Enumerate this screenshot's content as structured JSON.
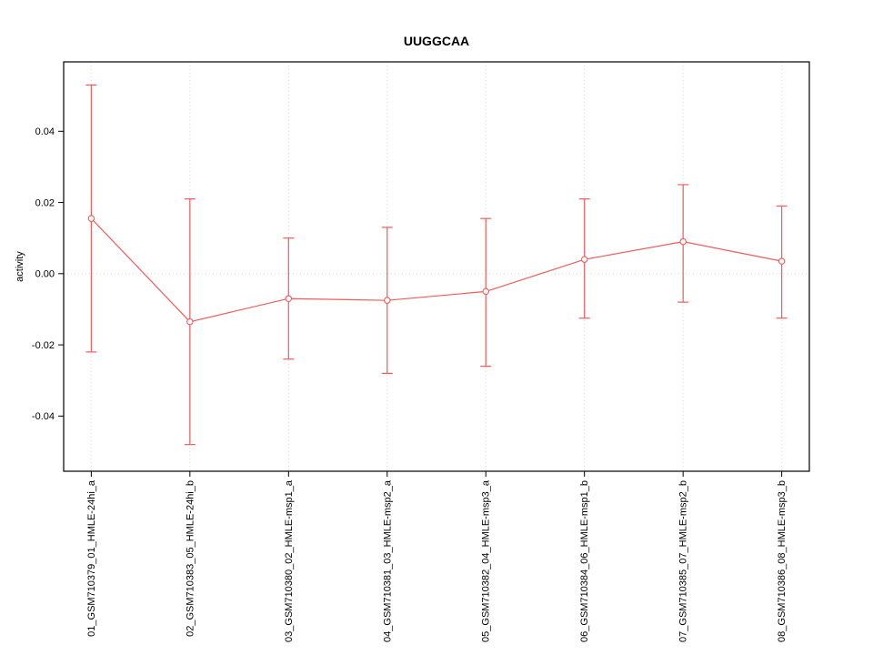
{
  "chart_data": {
    "type": "line",
    "error_bars": true,
    "title": "UUGGCAA",
    "xlabel": "",
    "ylabel": "activity",
    "categories": [
      "01_GSM710379_01_HMLE-24hi_a",
      "02_GSM710383_05_HMLE-24hi_b",
      "03_GSM710380_02_HMLE-msp1_a",
      "04_GSM710381_03_HMLE-msp2_a",
      "05_GSM710382_04_HMLE-msp3_a",
      "06_GSM710384_06_HMLE-msp1_b",
      "07_GSM710385_07_HMLE-msp2_b",
      "08_GSM710386_08_HMLE-msp3_b"
    ],
    "series": [
      {
        "name": "activity",
        "values": [
          0.0155,
          -0.0135,
          -0.007,
          -0.0075,
          -0.005,
          0.004,
          0.009,
          0.0035
        ],
        "error_high": [
          0.053,
          0.021,
          0.01,
          0.013,
          0.0155,
          0.021,
          0.025,
          0.019
        ],
        "error_low": [
          -0.022,
          -0.048,
          -0.024,
          -0.028,
          -0.026,
          -0.0125,
          -0.008,
          -0.0125
        ]
      }
    ],
    "ylim": [
      -0.0555,
      0.0595
    ],
    "ytick_values": [
      -0.04,
      -0.02,
      0,
      0.02,
      0.04
    ],
    "ytick_labels": [
      "-0.04",
      "-0.02",
      "0.00",
      "0.02",
      "0.04"
    ],
    "grid": "dotted vertical lines at each category and dotted horizontal line at zero",
    "legend": "none",
    "colors": {
      "series": "#f05c5c",
      "grid": "#d6d6d6",
      "axis": "#000000",
      "text": "#000000",
      "background": "#ffffff",
      "point_fill": "#ffffff"
    }
  }
}
